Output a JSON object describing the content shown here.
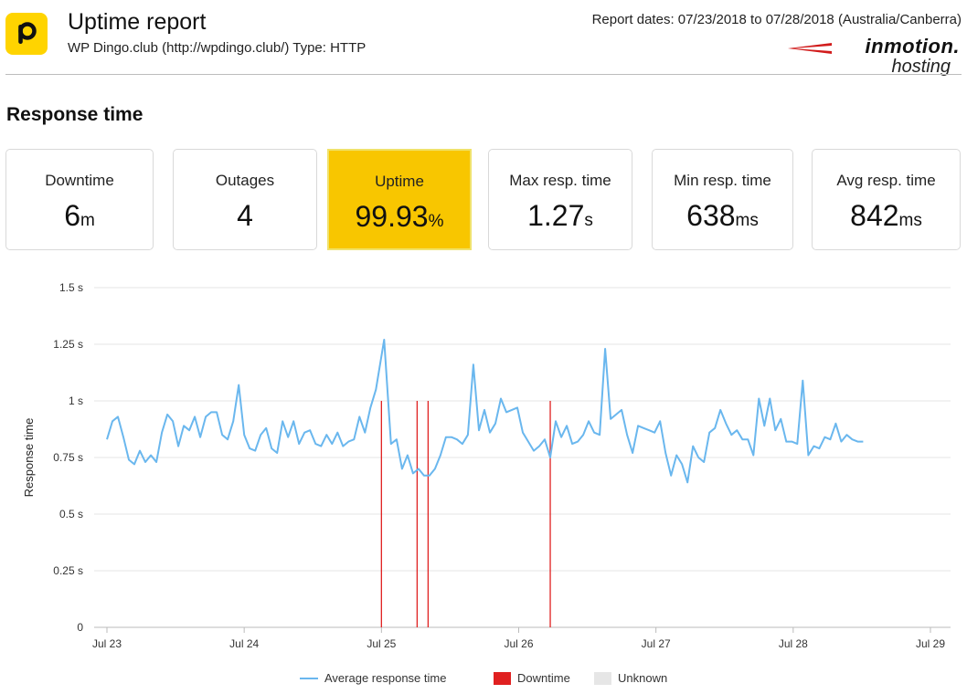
{
  "header": {
    "title": "Uptime report",
    "subtitle": "WP Dingo.club (http://wpdingo.club/) Type: HTTP",
    "report_dates": "Report dates: 07/23/2018 to 07/28/2018 (Australia/Canberra)",
    "brand_top": "inmotion.",
    "brand_sub": "hosting",
    "logo_letter": "P",
    "logo_color": "#ffd400"
  },
  "section_title": "Response time",
  "cards": [
    {
      "label": "Downtime",
      "value": "6",
      "unit": "m",
      "highlight": false
    },
    {
      "label": "Outages",
      "value": "4",
      "unit": "",
      "highlight": false
    },
    {
      "label": "Uptime",
      "value": "99.93",
      "unit": "%",
      "highlight": true
    },
    {
      "label": "Max resp. time",
      "value": "1.27",
      "unit": "s",
      "highlight": false
    },
    {
      "label": "Min resp. time",
      "value": "638",
      "unit": "ms",
      "highlight": false
    },
    {
      "label": "Avg resp. time",
      "value": "842",
      "unit": "ms",
      "highlight": false
    }
  ],
  "colors": {
    "line": "#6ab7ee",
    "downtime": "#e02020",
    "unknown": "#e6e6e6",
    "highlight": "#f8c600",
    "grid": "#e4e4e4"
  },
  "chart_data": {
    "type": "line",
    "ylabel": "Response time",
    "xlabel": "",
    "ylim": [
      0,
      1.5
    ],
    "y_ticks": [
      {
        "v": 0,
        "label": "0"
      },
      {
        "v": 0.25,
        "label": "0.25 s"
      },
      {
        "v": 0.5,
        "label": "0.5 s"
      },
      {
        "v": 0.75,
        "label": "0.75 s"
      },
      {
        "v": 1.0,
        "label": "1 s"
      },
      {
        "v": 1.25,
        "label": "1.25 s"
      },
      {
        "v": 1.5,
        "label": "1.5 s"
      }
    ],
    "xlim": [
      23,
      29.15
    ],
    "x_ticks": [
      {
        "v": 23,
        "label": "Jul 23"
      },
      {
        "v": 24,
        "label": "Jul 24"
      },
      {
        "v": 25,
        "label": "Jul 25"
      },
      {
        "v": 26,
        "label": "Jul 26"
      },
      {
        "v": 27,
        "label": "Jul 27"
      },
      {
        "v": 28,
        "label": "Jul 28"
      },
      {
        "v": 29,
        "label": "Jul 29"
      }
    ],
    "grid": true,
    "legend": [
      {
        "label": "Average response time",
        "kind": "line"
      },
      {
        "label": "Downtime",
        "kind": "downtime"
      },
      {
        "label": "Unknown",
        "kind": "unknown"
      }
    ],
    "legend_position": "bottom",
    "series": [
      {
        "name": "Average response time",
        "points": [
          [
            23.0,
            0.83
          ],
          [
            23.04,
            0.91
          ],
          [
            23.08,
            0.93
          ],
          [
            23.12,
            0.84
          ],
          [
            23.16,
            0.74
          ],
          [
            23.2,
            0.72
          ],
          [
            23.24,
            0.78
          ],
          [
            23.28,
            0.73
          ],
          [
            23.32,
            0.76
          ],
          [
            23.36,
            0.73
          ],
          [
            23.4,
            0.86
          ],
          [
            23.44,
            0.94
          ],
          [
            23.48,
            0.91
          ],
          [
            23.52,
            0.8
          ],
          [
            23.56,
            0.89
          ],
          [
            23.6,
            0.87
          ],
          [
            23.64,
            0.93
          ],
          [
            23.68,
            0.84
          ],
          [
            23.72,
            0.93
          ],
          [
            23.76,
            0.95
          ],
          [
            23.8,
            0.95
          ],
          [
            23.84,
            0.85
          ],
          [
            23.88,
            0.83
          ],
          [
            23.92,
            0.91
          ],
          [
            23.96,
            1.07
          ],
          [
            24.0,
            0.85
          ],
          [
            24.04,
            0.79
          ],
          [
            24.08,
            0.78
          ],
          [
            24.12,
            0.85
          ],
          [
            24.16,
            0.88
          ],
          [
            24.2,
            0.79
          ],
          [
            24.24,
            0.77
          ],
          [
            24.28,
            0.91
          ],
          [
            24.32,
            0.84
          ],
          [
            24.36,
            0.91
          ],
          [
            24.4,
            0.81
          ],
          [
            24.44,
            0.86
          ],
          [
            24.48,
            0.87
          ],
          [
            24.52,
            0.81
          ],
          [
            24.56,
            0.8
          ],
          [
            24.6,
            0.85
          ],
          [
            24.64,
            0.81
          ],
          [
            24.68,
            0.86
          ],
          [
            24.72,
            0.8
          ],
          [
            24.76,
            0.82
          ],
          [
            24.8,
            0.83
          ],
          [
            24.84,
            0.93
          ],
          [
            24.88,
            0.86
          ],
          [
            24.92,
            0.97
          ],
          [
            24.96,
            1.05
          ],
          [
            25.02,
            1.27
          ],
          [
            25.07,
            0.81
          ],
          [
            25.11,
            0.83
          ],
          [
            25.15,
            0.7
          ],
          [
            25.19,
            0.76
          ],
          [
            25.23,
            0.68
          ],
          [
            25.27,
            0.7
          ],
          [
            25.31,
            0.67
          ],
          [
            25.35,
            0.67
          ],
          [
            25.39,
            0.7
          ],
          [
            25.43,
            0.76
          ],
          [
            25.47,
            0.84
          ],
          [
            25.51,
            0.84
          ],
          [
            25.55,
            0.83
          ],
          [
            25.59,
            0.81
          ],
          [
            25.63,
            0.85
          ],
          [
            25.67,
            1.16
          ],
          [
            25.71,
            0.87
          ],
          [
            25.75,
            0.96
          ],
          [
            25.79,
            0.86
          ],
          [
            25.83,
            0.9
          ],
          [
            25.87,
            1.01
          ],
          [
            25.91,
            0.95
          ],
          [
            25.95,
            0.96
          ],
          [
            25.99,
            0.97
          ],
          [
            26.03,
            0.86
          ],
          [
            26.07,
            0.82
          ],
          [
            26.11,
            0.78
          ],
          [
            26.15,
            0.8
          ],
          [
            26.19,
            0.83
          ],
          [
            26.23,
            0.75
          ],
          [
            26.27,
            0.91
          ],
          [
            26.31,
            0.84
          ],
          [
            26.35,
            0.89
          ],
          [
            26.39,
            0.81
          ],
          [
            26.43,
            0.82
          ],
          [
            26.47,
            0.85
          ],
          [
            26.51,
            0.91
          ],
          [
            26.55,
            0.86
          ],
          [
            26.59,
            0.85
          ],
          [
            26.63,
            1.23
          ],
          [
            26.67,
            0.92
          ],
          [
            26.71,
            0.94
          ],
          [
            26.75,
            0.96
          ],
          [
            26.79,
            0.85
          ],
          [
            26.83,
            0.77
          ],
          [
            26.87,
            0.89
          ],
          [
            26.91,
            0.88
          ],
          [
            26.95,
            0.87
          ],
          [
            26.99,
            0.86
          ],
          [
            27.03,
            0.91
          ],
          [
            27.07,
            0.77
          ],
          [
            27.11,
            0.67
          ],
          [
            27.15,
            0.76
          ],
          [
            27.19,
            0.72
          ],
          [
            27.23,
            0.64
          ],
          [
            27.27,
            0.8
          ],
          [
            27.31,
            0.75
          ],
          [
            27.35,
            0.73
          ],
          [
            27.39,
            0.86
          ],
          [
            27.43,
            0.88
          ],
          [
            27.47,
            0.96
          ],
          [
            27.51,
            0.9
          ],
          [
            27.55,
            0.85
          ],
          [
            27.59,
            0.87
          ],
          [
            27.63,
            0.83
          ],
          [
            27.67,
            0.83
          ],
          [
            27.71,
            0.76
          ],
          [
            27.75,
            1.01
          ],
          [
            27.79,
            0.89
          ],
          [
            27.83,
            1.01
          ],
          [
            27.87,
            0.87
          ],
          [
            27.91,
            0.92
          ],
          [
            27.95,
            0.82
          ],
          [
            27.99,
            0.82
          ],
          [
            28.03,
            0.81
          ],
          [
            28.07,
            1.09
          ],
          [
            28.11,
            0.76
          ],
          [
            28.15,
            0.8
          ],
          [
            28.19,
            0.79
          ],
          [
            28.23,
            0.84
          ],
          [
            28.27,
            0.83
          ],
          [
            28.31,
            0.9
          ],
          [
            28.35,
            0.82
          ],
          [
            28.39,
            0.85
          ],
          [
            28.43,
            0.83
          ],
          [
            28.47,
            0.82
          ],
          [
            28.51,
            0.82
          ]
        ]
      }
    ],
    "downtime_markers": [
      25.0,
      25.26,
      25.34,
      26.23
    ],
    "downtime_marker_value": 1.0
  }
}
